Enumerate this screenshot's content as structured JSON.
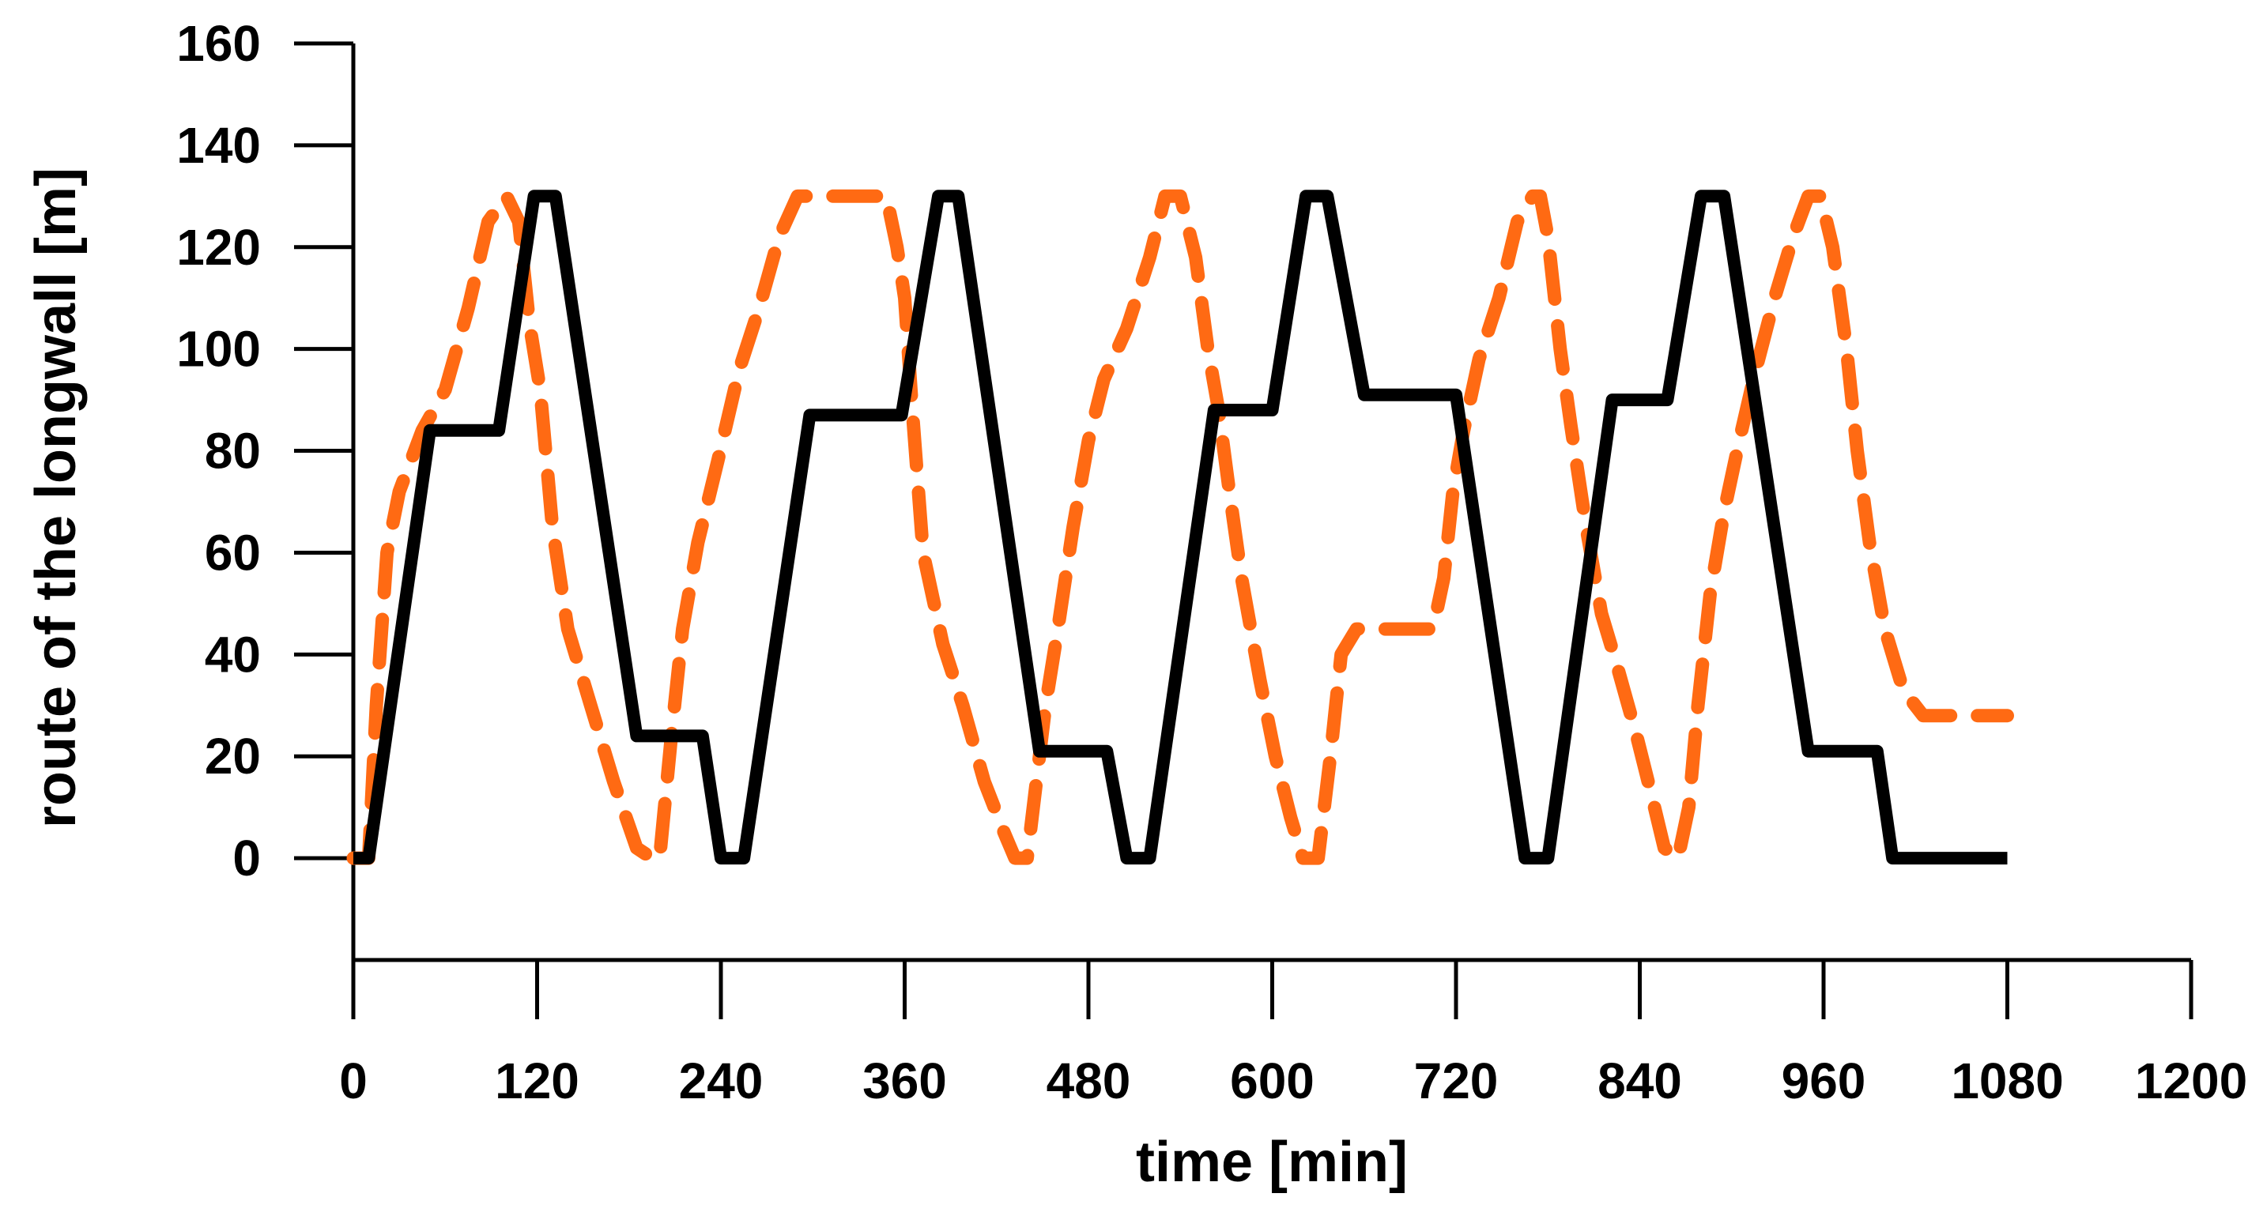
{
  "chart_data": {
    "type": "line",
    "title": "",
    "xlabel": "time [min]",
    "ylabel": "route of the longwall  [m]",
    "xlim": [
      0,
      1200
    ],
    "ylim": [
      -20,
      160
    ],
    "xticks": [
      0,
      120,
      240,
      360,
      480,
      600,
      720,
      840,
      960,
      1080,
      1200
    ],
    "yticks": [
      0,
      20,
      40,
      60,
      80,
      100,
      120,
      140,
      160
    ],
    "grid": false,
    "legend": "none",
    "series": [
      {
        "name": "solid",
        "color": "#000000",
        "style": "solid",
        "points": [
          [
            0,
            0
          ],
          [
            10,
            0
          ],
          [
            50,
            84
          ],
          [
            95,
            84
          ],
          [
            118,
            130
          ],
          [
            132,
            130
          ],
          [
            185,
            24
          ],
          [
            228,
            24
          ],
          [
            240,
            0
          ],
          [
            255,
            0
          ],
          [
            298,
            87
          ],
          [
            358,
            87
          ],
          [
            382,
            130
          ],
          [
            395,
            130
          ],
          [
            448,
            21
          ],
          [
            492,
            21
          ],
          [
            505,
            0
          ],
          [
            520,
            0
          ],
          [
            562,
            88
          ],
          [
            600,
            88
          ],
          [
            622,
            130
          ],
          [
            636,
            130
          ],
          [
            660,
            91
          ],
          [
            720,
            91
          ],
          [
            765,
            0
          ],
          [
            780,
            0
          ],
          [
            822,
            90
          ],
          [
            858,
            90
          ],
          [
            880,
            130
          ],
          [
            895,
            130
          ],
          [
            950,
            21
          ],
          [
            995,
            21
          ],
          [
            1005,
            0
          ],
          [
            1080,
            0
          ]
        ]
      },
      {
        "name": "dashed",
        "color": "#ff6a13",
        "style": "dashed",
        "points": [
          [
            0,
            0
          ],
          [
            10,
            0
          ],
          [
            15,
            30
          ],
          [
            22,
            60
          ],
          [
            30,
            72
          ],
          [
            45,
            84
          ],
          [
            60,
            92
          ],
          [
            75,
            108
          ],
          [
            88,
            125
          ],
          [
            100,
            130
          ],
          [
            108,
            125
          ],
          [
            115,
            105
          ],
          [
            122,
            92
          ],
          [
            130,
            65
          ],
          [
            140,
            45
          ],
          [
            155,
            30
          ],
          [
            170,
            15
          ],
          [
            185,
            2
          ],
          [
            195,
            0
          ],
          [
            200,
            0
          ],
          [
            208,
            25
          ],
          [
            215,
            45
          ],
          [
            225,
            62
          ],
          [
            238,
            78
          ],
          [
            252,
            96
          ],
          [
            265,
            108
          ],
          [
            278,
            122
          ],
          [
            290,
            130
          ],
          [
            310,
            130
          ],
          [
            330,
            130
          ],
          [
            348,
            130
          ],
          [
            355,
            120
          ],
          [
            360,
            110
          ],
          [
            365,
            88
          ],
          [
            372,
            60
          ],
          [
            385,
            42
          ],
          [
            398,
            30
          ],
          [
            412,
            15
          ],
          [
            425,
            5
          ],
          [
            432,
            0
          ],
          [
            440,
            0
          ],
          [
            446,
            15
          ],
          [
            452,
            30
          ],
          [
            460,
            45
          ],
          [
            470,
            65
          ],
          [
            480,
            82
          ],
          [
            490,
            94
          ],
          [
            505,
            104
          ],
          [
            520,
            118
          ],
          [
            530,
            130
          ],
          [
            540,
            130
          ],
          [
            550,
            118
          ],
          [
            558,
            100
          ],
          [
            565,
            88
          ],
          [
            572,
            72
          ],
          [
            580,
            55
          ],
          [
            592,
            35
          ],
          [
            602,
            20
          ],
          [
            612,
            8
          ],
          [
            620,
            0
          ],
          [
            630,
            0
          ],
          [
            638,
            20
          ],
          [
            645,
            40
          ],
          [
            655,
            45
          ],
          [
            670,
            45
          ],
          [
            690,
            45
          ],
          [
            705,
            45
          ],
          [
            712,
            55
          ],
          [
            718,
            72
          ],
          [
            725,
            84
          ],
          [
            735,
            98
          ],
          [
            748,
            110
          ],
          [
            760,
            125
          ],
          [
            770,
            130
          ],
          [
            775,
            130
          ],
          [
            780,
            122
          ],
          [
            788,
            100
          ],
          [
            795,
            85
          ],
          [
            805,
            65
          ],
          [
            815,
            48
          ],
          [
            825,
            38
          ],
          [
            838,
            24
          ],
          [
            848,
            12
          ],
          [
            856,
            2
          ],
          [
            865,
            0
          ],
          [
            872,
            10
          ],
          [
            878,
            30
          ],
          [
            886,
            52
          ],
          [
            895,
            68
          ],
          [
            905,
            82
          ],
          [
            915,
            95
          ],
          [
            928,
            110
          ],
          [
            940,
            122
          ],
          [
            950,
            130
          ],
          [
            958,
            130
          ],
          [
            966,
            120
          ],
          [
            975,
            100
          ],
          [
            982,
            80
          ],
          [
            990,
            62
          ],
          [
            1000,
            45
          ],
          [
            1012,
            33
          ],
          [
            1025,
            28
          ],
          [
            1050,
            28
          ],
          [
            1080,
            28
          ]
        ]
      }
    ]
  }
}
